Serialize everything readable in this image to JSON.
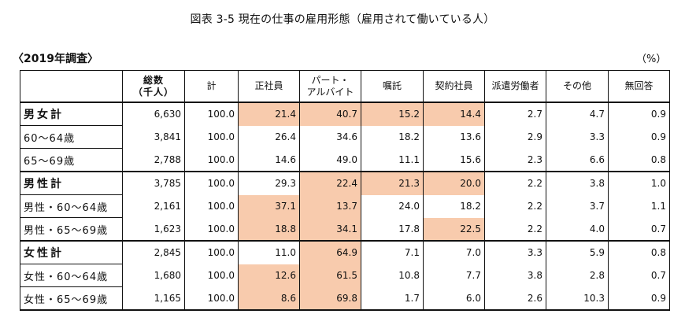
{
  "title": "図表 3-5  現在の仕事の雇用形態（雇用されて働いている人）",
  "survey_label": "〈2019年調査〉",
  "unit": "（%）",
  "highlight_color": "#f8cbad",
  "table": {
    "headers": [
      "",
      "総数\n（千人）",
      "計",
      "正社員",
      "パート・\nアルバイト",
      "嘱託",
      "契約社員",
      "派遣労働者",
      "その他",
      "無回答"
    ],
    "header_lines": {
      "total_line1": "総数",
      "total_line2": "（千人）",
      "part_line1": "パート・",
      "part_line2": "アルバイト"
    },
    "rows": [
      {
        "label": "男女計",
        "bold": true,
        "values": [
          "6,630",
          "100.0",
          "21.4",
          "40.7",
          "15.2",
          "14.4",
          "2.7",
          "4.7",
          "0.9"
        ],
        "highlight": [
          false,
          false,
          true,
          true,
          true,
          true,
          false,
          false,
          false
        ]
      },
      {
        "label": "60～64歳",
        "bold": false,
        "values": [
          "3,841",
          "100.0",
          "26.4",
          "34.6",
          "18.2",
          "13.6",
          "2.9",
          "3.3",
          "0.9"
        ],
        "highlight": [
          false,
          false,
          false,
          false,
          false,
          false,
          false,
          false,
          false
        ]
      },
      {
        "label": "65～69歳",
        "bold": false,
        "values": [
          "2,788",
          "100.0",
          "14.6",
          "49.0",
          "11.1",
          "15.6",
          "2.3",
          "6.6",
          "0.8"
        ],
        "highlight": [
          false,
          false,
          false,
          false,
          false,
          false,
          false,
          false,
          false
        ]
      },
      {
        "label": "男性計",
        "bold": true,
        "values": [
          "3,785",
          "100.0",
          "29.3",
          "22.4",
          "21.3",
          "20.0",
          "2.2",
          "3.8",
          "1.0"
        ],
        "highlight": [
          false,
          false,
          false,
          true,
          true,
          true,
          false,
          false,
          false
        ]
      },
      {
        "label": "男性・60～64歳",
        "bold": false,
        "values": [
          "2,161",
          "100.0",
          "37.1",
          "13.7",
          "24.0",
          "18.2",
          "2.2",
          "3.7",
          "1.1"
        ],
        "highlight": [
          false,
          false,
          true,
          true,
          false,
          false,
          false,
          false,
          false
        ]
      },
      {
        "label": "男性・65～69歳",
        "bold": false,
        "values": [
          "1,623",
          "100.0",
          "18.8",
          "34.1",
          "17.8",
          "22.5",
          "2.2",
          "4.0",
          "0.7"
        ],
        "highlight": [
          false,
          false,
          true,
          true,
          false,
          true,
          false,
          false,
          false
        ]
      },
      {
        "label": "女性計",
        "bold": true,
        "values": [
          "2,845",
          "100.0",
          "11.0",
          "64.9",
          "7.1",
          "7.0",
          "3.3",
          "5.9",
          "0.8"
        ],
        "highlight": [
          false,
          false,
          false,
          true,
          false,
          false,
          false,
          false,
          false
        ]
      },
      {
        "label": "女性・60～64歳",
        "bold": false,
        "values": [
          "1,680",
          "100.0",
          "12.6",
          "61.5",
          "10.8",
          "7.7",
          "3.8",
          "2.8",
          "0.7"
        ],
        "highlight": [
          false,
          false,
          true,
          true,
          false,
          false,
          false,
          false,
          false
        ]
      },
      {
        "label": "女性・65～69歳",
        "bold": false,
        "values": [
          "1,165",
          "100.0",
          "8.6",
          "69.8",
          "1.7",
          "6.0",
          "2.6",
          "10.3",
          "0.9"
        ],
        "highlight": [
          false,
          false,
          true,
          true,
          false,
          false,
          false,
          false,
          false
        ]
      }
    ]
  }
}
